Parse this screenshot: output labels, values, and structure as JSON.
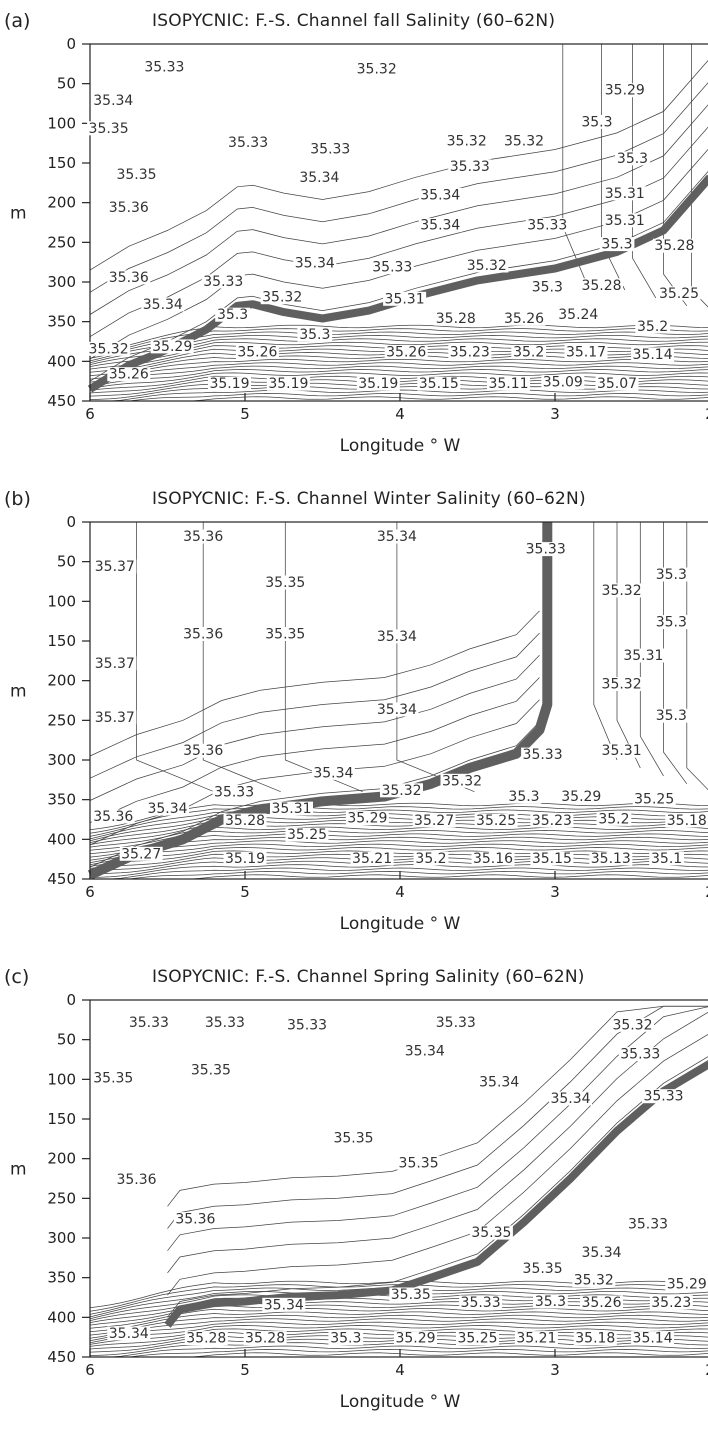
{
  "chart_data": [
    {
      "id": "a",
      "type": "contour",
      "panel_label": "(a)",
      "title": "ISOPYCNIC: F.-S. Channel fall Salinity (60–62N)",
      "xlabel": "Longitude ° W",
      "ylabel": "m",
      "xlim": [
        6,
        2
      ],
      "ylim": [
        0,
        450
      ],
      "x_ticks": [
        6,
        5,
        4,
        3,
        2
      ],
      "x_tick_labels": [
        "6",
        "5",
        "4",
        "3",
        "2"
      ],
      "y_ticks": [
        0,
        50,
        100,
        150,
        200,
        250,
        300,
        350,
        400,
        450
      ],
      "y_tick_labels": [
        "0",
        "50",
        "100",
        "150",
        "200",
        "250",
        "300",
        "350",
        "400",
        "450"
      ],
      "contour_labels": [
        {
          "value": "35.33",
          "x": 5.52,
          "y": 33
        },
        {
          "value": "35.32",
          "x": 4.15,
          "y": 35
        },
        {
          "value": "35.29",
          "x": 2.55,
          "y": 62
        },
        {
          "value": "35.34",
          "x": 5.85,
          "y": 75
        },
        {
          "value": "35.35",
          "x": 5.88,
          "y": 110
        },
        {
          "value": "35.3",
          "x": 2.73,
          "y": 102
        },
        {
          "value": "35.33",
          "x": 4.98,
          "y": 128
        },
        {
          "value": "35.33",
          "x": 4.45,
          "y": 136
        },
        {
          "value": "35.32",
          "x": 3.57,
          "y": 126
        },
        {
          "value": "35.32",
          "x": 3.2,
          "y": 126
        },
        {
          "value": "35.3",
          "x": 2.5,
          "y": 148
        },
        {
          "value": "35.35",
          "x": 5.7,
          "y": 168
        },
        {
          "value": "35.34",
          "x": 4.52,
          "y": 172
        },
        {
          "value": "35.33",
          "x": 3.55,
          "y": 158
        },
        {
          "value": "35.34",
          "x": 3.74,
          "y": 194
        },
        {
          "value": "35.31",
          "x": 2.55,
          "y": 192
        },
        {
          "value": "35.36",
          "x": 5.75,
          "y": 210
        },
        {
          "value": "35.34",
          "x": 3.74,
          "y": 232
        },
        {
          "value": "35.33",
          "x": 3.05,
          "y": 232
        },
        {
          "value": "35.31",
          "x": 2.55,
          "y": 226
        },
        {
          "value": "35.3",
          "x": 2.6,
          "y": 256
        },
        {
          "value": "35.28",
          "x": 2.23,
          "y": 258
        },
        {
          "value": "35.34",
          "x": 4.55,
          "y": 280
        },
        {
          "value": "35.33",
          "x": 4.05,
          "y": 285
        },
        {
          "value": "35.32",
          "x": 3.44,
          "y": 283
        },
        {
          "value": "35.36",
          "x": 5.75,
          "y": 298
        },
        {
          "value": "35.33",
          "x": 5.14,
          "y": 303
        },
        {
          "value": "35.3",
          "x": 3.05,
          "y": 310
        },
        {
          "value": "35.28",
          "x": 2.7,
          "y": 308
        },
        {
          "value": "35.25",
          "x": 2.2,
          "y": 318
        },
        {
          "value": "35.34",
          "x": 5.53,
          "y": 332
        },
        {
          "value": "35.32",
          "x": 4.76,
          "y": 323
        },
        {
          "value": "35.31",
          "x": 3.97,
          "y": 325
        },
        {
          "value": "35.3",
          "x": 5.08,
          "y": 345
        },
        {
          "value": "35.28",
          "x": 3.64,
          "y": 350
        },
        {
          "value": "35.26",
          "x": 3.2,
          "y": 350
        },
        {
          "value": "35.24",
          "x": 2.85,
          "y": 345
        },
        {
          "value": "35.3",
          "x": 4.55,
          "y": 370
        },
        {
          "value": "35.2",
          "x": 2.37,
          "y": 360
        },
        {
          "value": "35.32",
          "x": 5.88,
          "y": 388
        },
        {
          "value": "35.29",
          "x": 5.47,
          "y": 385
        },
        {
          "value": "35.26",
          "x": 4.92,
          "y": 392
        },
        {
          "value": "35.26",
          "x": 3.96,
          "y": 392
        },
        {
          "value": "35.23",
          "x": 3.55,
          "y": 392
        },
        {
          "value": "35.2",
          "x": 3.17,
          "y": 392
        },
        {
          "value": "35.17",
          "x": 2.8,
          "y": 392
        },
        {
          "value": "35.14",
          "x": 2.37,
          "y": 395
        },
        {
          "value": "35.26",
          "x": 5.75,
          "y": 420
        },
        {
          "value": "35.19",
          "x": 5.1,
          "y": 432
        },
        {
          "value": "35.19",
          "x": 4.72,
          "y": 432
        },
        {
          "value": "35.19",
          "x": 4.14,
          "y": 432
        },
        {
          "value": "35.15",
          "x": 3.75,
          "y": 432
        },
        {
          "value": "35.11",
          "x": 3.3,
          "y": 432
        },
        {
          "value": "35.09",
          "x": 2.95,
          "y": 430
        },
        {
          "value": "35.07",
          "x": 2.6,
          "y": 432
        }
      ]
    },
    {
      "id": "b",
      "type": "contour",
      "panel_label": "(b)",
      "title": "ISOPYCNIC: F.-S. Channel Winter Salinity (60–62N)",
      "xlabel": "Longitude ° W",
      "ylabel": "m",
      "xlim": [
        6,
        2
      ],
      "ylim": [
        0,
        450
      ],
      "x_ticks": [
        6,
        5,
        4,
        3,
        2
      ],
      "x_tick_labels": [
        "6",
        "5",
        "4",
        "3",
        "2"
      ],
      "y_ticks": [
        0,
        50,
        100,
        150,
        200,
        250,
        300,
        350,
        400,
        450
      ],
      "y_tick_labels": [
        "0",
        "50",
        "100",
        "150",
        "200",
        "250",
        "300",
        "350",
        "400",
        "450"
      ],
      "contour_labels": [
        {
          "value": "35.36",
          "x": 5.27,
          "y": 22
        },
        {
          "value": "35.34",
          "x": 4.02,
          "y": 22
        },
        {
          "value": "35.37",
          "x": 5.84,
          "y": 60
        },
        {
          "value": "35.35",
          "x": 4.74,
          "y": 80
        },
        {
          "value": "35.33",
          "x": 3.06,
          "y": 38
        },
        {
          "value": "35.32",
          "x": 2.57,
          "y": 90
        },
        {
          "value": "35.3",
          "x": 2.25,
          "y": 70
        },
        {
          "value": "35.3",
          "x": 2.25,
          "y": 130
        },
        {
          "value": "35.36",
          "x": 5.27,
          "y": 145
        },
        {
          "value": "35.35",
          "x": 4.74,
          "y": 145
        },
        {
          "value": "35.34",
          "x": 4.02,
          "y": 148
        },
        {
          "value": "35.31",
          "x": 2.43,
          "y": 172
        },
        {
          "value": "35.37",
          "x": 5.84,
          "y": 182
        },
        {
          "value": "35.32",
          "x": 2.57,
          "y": 208
        },
        {
          "value": "35.34",
          "x": 4.02,
          "y": 240
        },
        {
          "value": "35.37",
          "x": 5.84,
          "y": 250
        },
        {
          "value": "35.3",
          "x": 2.25,
          "y": 248
        },
        {
          "value": "35.36",
          "x": 5.27,
          "y": 292
        },
        {
          "value": "35.33",
          "x": 3.08,
          "y": 297
        },
        {
          "value": "35.31",
          "x": 2.57,
          "y": 292
        },
        {
          "value": "35.34",
          "x": 4.43,
          "y": 320
        },
        {
          "value": "35.32",
          "x": 3.6,
          "y": 330
        },
        {
          "value": "35.33",
          "x": 5.07,
          "y": 344
        },
        {
          "value": "35.32",
          "x": 3.99,
          "y": 342
        },
        {
          "value": "35.3",
          "x": 3.2,
          "y": 350
        },
        {
          "value": "35.29",
          "x": 2.83,
          "y": 350
        },
        {
          "value": "35.25",
          "x": 2.36,
          "y": 353
        },
        {
          "value": "35.34",
          "x": 5.5,
          "y": 365
        },
        {
          "value": "35.31",
          "x": 4.7,
          "y": 365
        },
        {
          "value": "35.36",
          "x": 5.85,
          "y": 375
        },
        {
          "value": "35.28",
          "x": 5.0,
          "y": 380
        },
        {
          "value": "35.29",
          "x": 4.21,
          "y": 377
        },
        {
          "value": "35.27",
          "x": 3.78,
          "y": 380
        },
        {
          "value": "35.25",
          "x": 3.38,
          "y": 380
        },
        {
          "value": "35.23",
          "x": 3.02,
          "y": 380
        },
        {
          "value": "35.2",
          "x": 2.62,
          "y": 378
        },
        {
          "value": "35.18",
          "x": 2.15,
          "y": 380
        },
        {
          "value": "35.25",
          "x": 4.6,
          "y": 398
        },
        {
          "value": "35.27",
          "x": 5.67,
          "y": 422
        },
        {
          "value": "35.19",
          "x": 5.0,
          "y": 428
        },
        {
          "value": "35.21",
          "x": 4.18,
          "y": 428
        },
        {
          "value": "35.2",
          "x": 3.8,
          "y": 428
        },
        {
          "value": "35.16",
          "x": 3.4,
          "y": 428
        },
        {
          "value": "35.15",
          "x": 3.02,
          "y": 428
        },
        {
          "value": "35.13",
          "x": 2.64,
          "y": 428
        },
        {
          "value": "35.1",
          "x": 2.28,
          "y": 428
        }
      ]
    },
    {
      "id": "c",
      "type": "contour",
      "panel_label": "(c)",
      "title": "ISOPYCNIC: F.-S. Channel Spring Salinity (60–62N)",
      "xlabel": "Longitude ° W",
      "ylabel": "m",
      "xlim": [
        6,
        2
      ],
      "ylim": [
        0,
        450
      ],
      "x_ticks": [
        6,
        5,
        4,
        3,
        2
      ],
      "x_tick_labels": [
        "6",
        "5",
        "4",
        "3",
        "2"
      ],
      "y_ticks": [
        0,
        50,
        100,
        150,
        200,
        250,
        300,
        350,
        400,
        450
      ],
      "y_tick_labels": [
        "0",
        "50",
        "100",
        "150",
        "200",
        "250",
        "300",
        "350",
        "400",
        "450"
      ],
      "contour_labels": [
        {
          "value": "35.33",
          "x": 5.62,
          "y": 32
        },
        {
          "value": "35.33",
          "x": 5.13,
          "y": 32
        },
        {
          "value": "35.33",
          "x": 4.6,
          "y": 35
        },
        {
          "value": "35.33",
          "x": 3.64,
          "y": 32
        },
        {
          "value": "35.32",
          "x": 2.5,
          "y": 35
        },
        {
          "value": "35.34",
          "x": 3.84,
          "y": 68
        },
        {
          "value": "35.33",
          "x": 2.45,
          "y": 72
        },
        {
          "value": "35.35",
          "x": 5.85,
          "y": 102
        },
        {
          "value": "35.35",
          "x": 5.22,
          "y": 92
        },
        {
          "value": "35.34",
          "x": 3.36,
          "y": 107
        },
        {
          "value": "35.33",
          "x": 2.3,
          "y": 125
        },
        {
          "value": "35.34",
          "x": 2.9,
          "y": 128
        },
        {
          "value": "35.35",
          "x": 4.3,
          "y": 178
        },
        {
          "value": "35.35",
          "x": 3.88,
          "y": 209
        },
        {
          "value": "35.36",
          "x": 5.7,
          "y": 230
        },
        {
          "value": "35.36",
          "x": 5.32,
          "y": 280
        },
        {
          "value": "35.35",
          "x": 3.41,
          "y": 297
        },
        {
          "value": "35.33",
          "x": 2.4,
          "y": 286
        },
        {
          "value": "35.34",
          "x": 2.7,
          "y": 322
        },
        {
          "value": "35.35",
          "x": 3.08,
          "y": 342
        },
        {
          "value": "35.32",
          "x": 2.75,
          "y": 357
        },
        {
          "value": "35.29",
          "x": 2.15,
          "y": 362
        },
        {
          "value": "35.35",
          "x": 3.93,
          "y": 375
        },
        {
          "value": "35.33",
          "x": 3.48,
          "y": 385
        },
        {
          "value": "35.3",
          "x": 3.03,
          "y": 384
        },
        {
          "value": "35.26",
          "x": 2.7,
          "y": 385
        },
        {
          "value": "35.23",
          "x": 2.25,
          "y": 385
        },
        {
          "value": "35.34",
          "x": 4.75,
          "y": 388
        },
        {
          "value": "35.34",
          "x": 5.75,
          "y": 424
        },
        {
          "value": "35.28",
          "x": 5.25,
          "y": 430
        },
        {
          "value": "35.28",
          "x": 4.87,
          "y": 430
        },
        {
          "value": "35.3",
          "x": 4.35,
          "y": 430
        },
        {
          "value": "35.29",
          "x": 3.9,
          "y": 430
        },
        {
          "value": "35.25",
          "x": 3.5,
          "y": 430
        },
        {
          "value": "35.21",
          "x": 3.12,
          "y": 430
        },
        {
          "value": "35.18",
          "x": 2.74,
          "y": 430
        },
        {
          "value": "35.14",
          "x": 2.37,
          "y": 430
        }
      ]
    }
  ]
}
